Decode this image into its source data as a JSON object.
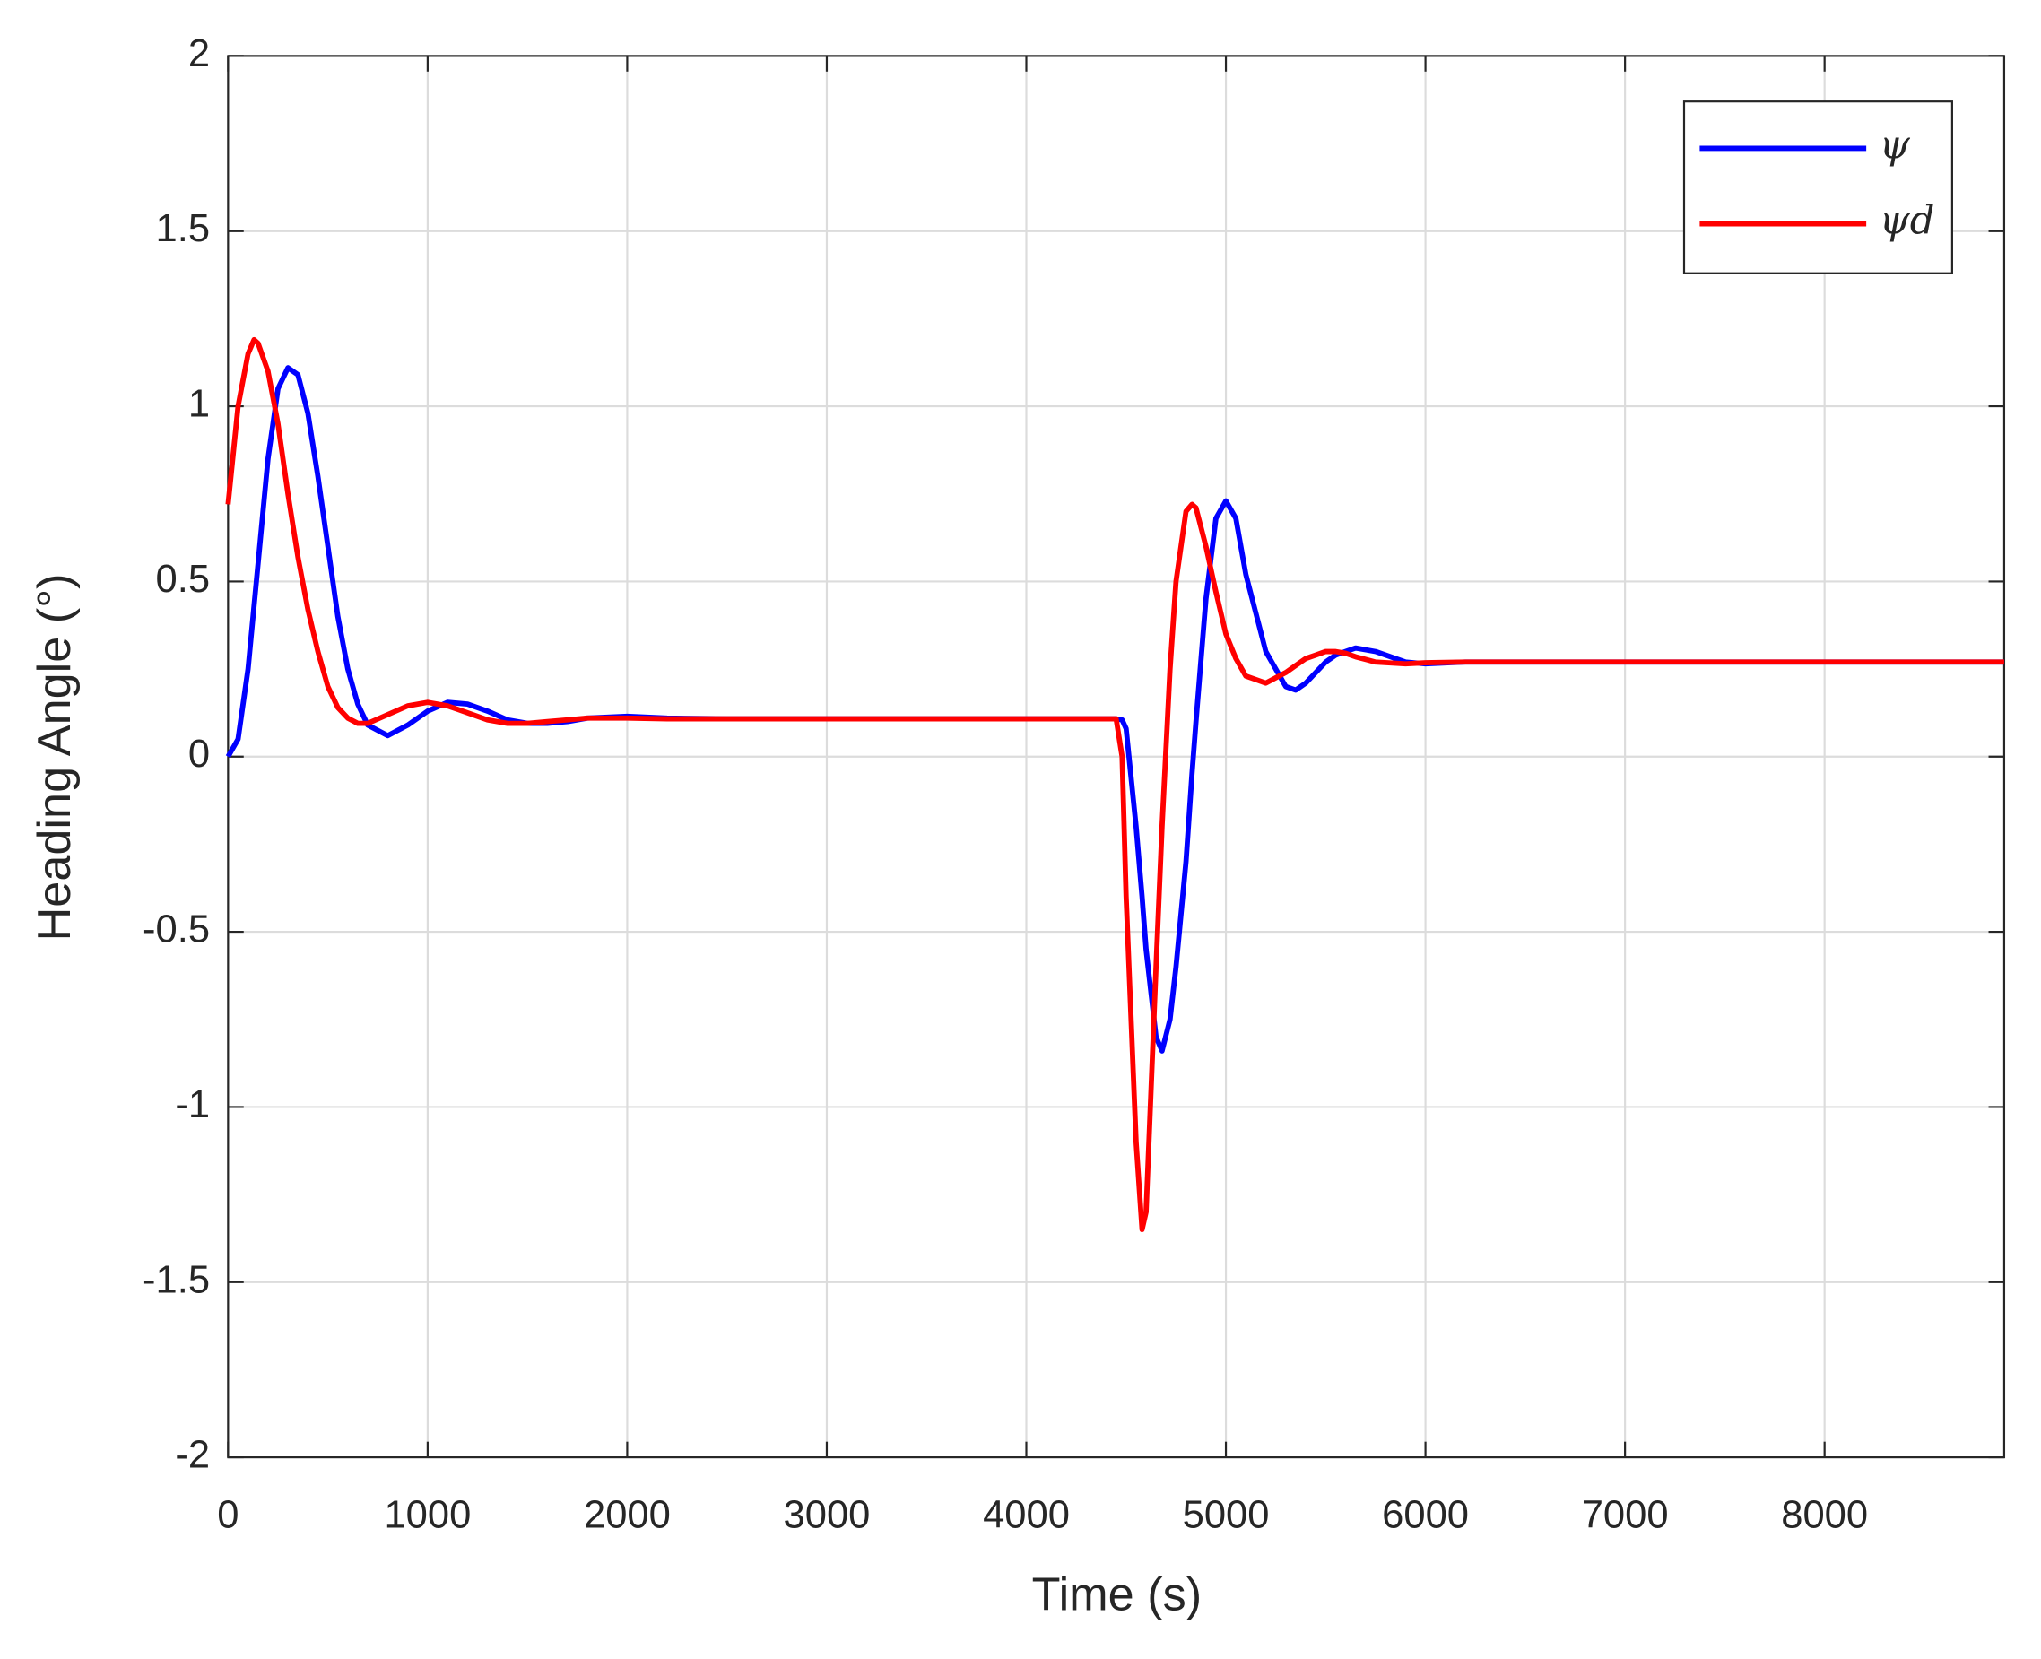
{
  "chart_data": {
    "type": "line",
    "xlabel": "Time (s)",
    "ylabel": "Heading Angle (°)",
    "x": [
      0,
      50,
      100,
      130,
      150,
      200,
      250,
      300,
      350,
      400,
      450,
      500,
      550,
      600,
      650,
      700,
      800,
      900,
      1000,
      1100,
      1200,
      1300,
      1400,
      1500,
      1600,
      1700,
      1800,
      2000,
      2200,
      2500,
      3000,
      4000,
      4450,
      4480,
      4500,
      4550,
      4580,
      4600,
      4650,
      4680,
      4720,
      4750,
      4800,
      4830,
      4850,
      4900,
      4950,
      5000,
      5050,
      5100,
      5200,
      5300,
      5350,
      5400,
      5450,
      5500,
      5550,
      5600,
      5650,
      5750,
      5900,
      6000,
      6200,
      6500,
      7000,
      8000,
      8900
    ],
    "series": [
      {
        "name": "ψ",
        "color": "#0000ff",
        "values": [
          0,
          0.05,
          0.25,
          0.43,
          0.55,
          0.85,
          1.05,
          1.11,
          1.09,
          0.98,
          0.8,
          0.6,
          0.4,
          0.25,
          0.15,
          0.09,
          0.06,
          0.09,
          0.13,
          0.155,
          0.15,
          0.13,
          0.105,
          0.095,
          0.095,
          0.1,
          0.11,
          0.115,
          0.11,
          0.108,
          0.108,
          0.108,
          0.108,
          0.105,
          0.08,
          -0.2,
          -0.4,
          -0.55,
          -0.8,
          -0.84,
          -0.75,
          -0.6,
          -0.3,
          -0.05,
          0.1,
          0.45,
          0.68,
          0.73,
          0.68,
          0.52,
          0.3,
          0.2,
          0.19,
          0.21,
          0.24,
          0.27,
          0.29,
          0.3,
          0.31,
          0.3,
          0.27,
          0.265,
          0.27,
          0.27,
          0.27,
          0.27,
          0.27
        ]
      },
      {
        "name": "ψd",
        "color": "#ff0000",
        "values": [
          0.72,
          1.0,
          1.15,
          1.19,
          1.18,
          1.1,
          0.95,
          0.75,
          0.57,
          0.42,
          0.3,
          0.2,
          0.14,
          0.11,
          0.095,
          0.095,
          0.12,
          0.145,
          0.155,
          0.145,
          0.125,
          0.105,
          0.095,
          0.095,
          0.1,
          0.105,
          0.11,
          0.11,
          0.108,
          0.108,
          0.108,
          0.108,
          0.108,
          0.0,
          -0.4,
          -1.1,
          -1.35,
          -1.3,
          -0.6,
          -0.2,
          0.25,
          0.5,
          0.7,
          0.72,
          0.71,
          0.6,
          0.47,
          0.35,
          0.28,
          0.23,
          0.21,
          0.24,
          0.26,
          0.28,
          0.29,
          0.3,
          0.3,
          0.295,
          0.285,
          0.27,
          0.265,
          0.268,
          0.27,
          0.27,
          0.27,
          0.27,
          0.27
        ]
      }
    ],
    "xlim": [
      0,
      8900
    ],
    "ylim": [
      -2,
      2
    ],
    "xticks": [
      0,
      1000,
      2000,
      3000,
      4000,
      5000,
      6000,
      7000,
      8000
    ],
    "yticks": [
      -2,
      -1.5,
      -1,
      -0.5,
      0,
      0.5,
      1,
      1.5,
      2
    ],
    "grid": true,
    "legend": "upper right"
  }
}
